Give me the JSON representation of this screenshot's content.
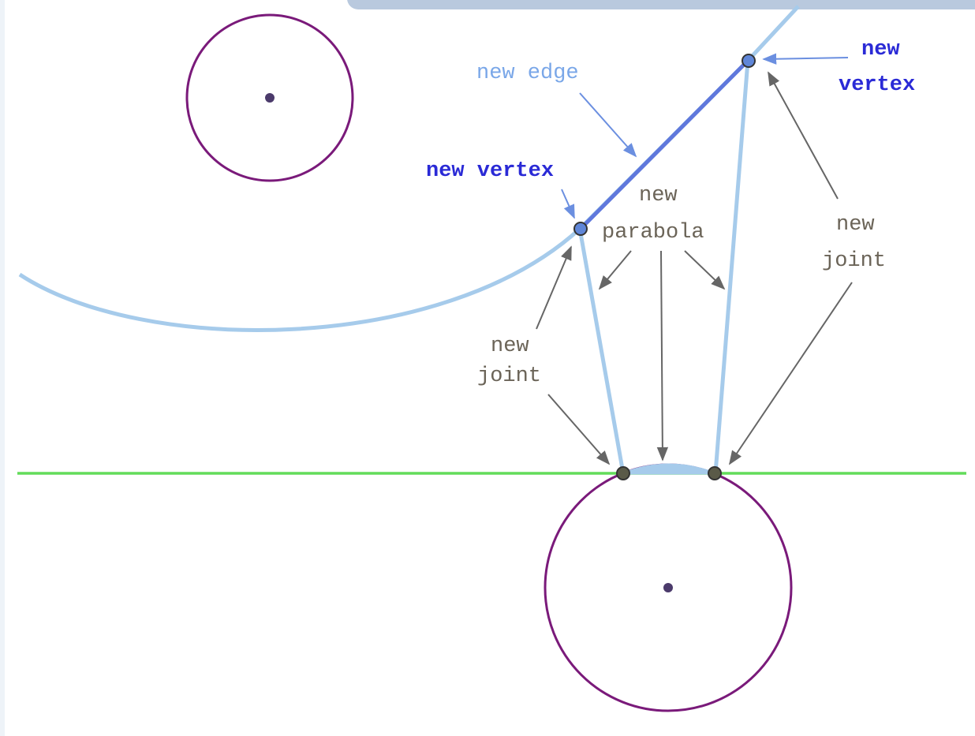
{
  "labels": [
    {
      "lines": [
        "new edge"
      ]
    },
    {
      "lines": [
        "new vertex"
      ]
    },
    {
      "lines": [
        "new",
        "vertex"
      ]
    },
    {
      "lines": [
        "new",
        "parabola"
      ]
    },
    {
      "lines": [
        "new",
        "joint"
      ]
    },
    {
      "lines": [
        "new",
        "joint"
      ]
    }
  ]
}
